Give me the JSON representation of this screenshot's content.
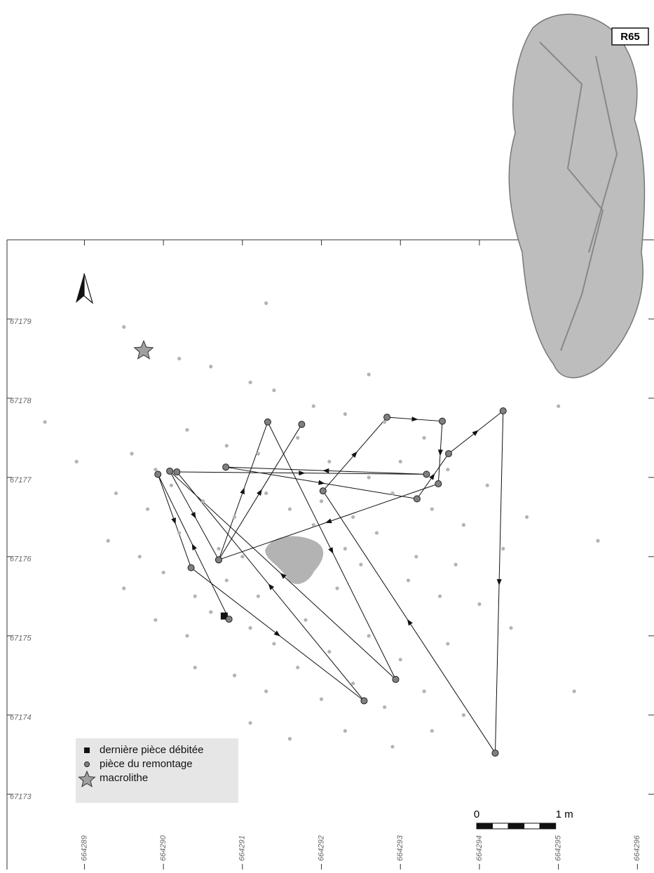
{
  "chart_data": {
    "type": "scatter",
    "annotation": "R65",
    "xlim": [
      664288.02,
      664296.21
    ],
    "ylim": [
      67172.05,
      67180.0
    ],
    "xticks": [
      664289,
      664290,
      664291,
      664292,
      664293,
      664294,
      664295,
      664296
    ],
    "yticks": [
      67173,
      67174,
      67175,
      67176,
      67177,
      67178,
      67179
    ],
    "scale_bar": {
      "length": 1,
      "labels": [
        "0",
        "1 m"
      ]
    },
    "series": [
      {
        "color": "#b3b3b3",
        "marker": "dot",
        "x": [
          664290.2,
          664290.6,
          664291.1,
          664291.4,
          664291.9,
          664292.3,
          664292.8,
          664293.3,
          664289.6,
          664289.9,
          664290.3,
          664290.8,
          664291.2,
          664291.7,
          664292.1,
          664292.6,
          664293.0,
          664293.6,
          664294.1,
          664289.4,
          664289.8,
          664290.1,
          664290.5,
          664290.9,
          664291.3,
          664291.6,
          664292.0,
          664292.4,
          664292.9,
          664293.4,
          664293.8,
          664294.6,
          664289.3,
          664289.7,
          664290.2,
          664290.7,
          664291.0,
          664291.5,
          664291.9,
          664292.3,
          664292.7,
          664293.2,
          664293.7,
          664294.3,
          664289.5,
          664290.0,
          664290.4,
          664290.8,
          664291.2,
          664291.7,
          664292.2,
          664292.5,
          664293.1,
          664293.5,
          664294.0,
          664289.9,
          664290.3,
          664290.6,
          664291.1,
          664291.4,
          664291.8,
          664292.1,
          664292.6,
          664293.0,
          664293.6,
          664294.4,
          664290.4,
          664290.9,
          664291.3,
          664291.7,
          664292.0,
          664292.4,
          664292.8,
          664293.3,
          664293.8,
          664291.1,
          664291.6,
          664292.3,
          664292.9,
          664293.4,
          664294.2,
          664288.5,
          664288.9,
          664295.5,
          664295.2,
          664292.6,
          664291.3,
          664289.5,
          664295.0,
          664290.7
        ],
        "y": [
          67178.5,
          67178.4,
          67178.2,
          67178.1,
          67177.9,
          67177.8,
          67177.7,
          67177.5,
          67177.3,
          67177.1,
          67177.6,
          67177.4,
          67177.3,
          67177.5,
          67177.2,
          67177.0,
          67177.2,
          67177.1,
          67176.9,
          67176.8,
          67176.6,
          67176.9,
          67176.7,
          67176.5,
          67176.8,
          67176.6,
          67176.7,
          67176.5,
          67176.8,
          67176.6,
          67176.4,
          67176.5,
          67176.2,
          67176.0,
          67176.3,
          67176.1,
          67176.0,
          67176.2,
          67176.4,
          67176.1,
          67176.3,
          67176.0,
          67175.9,
          67176.1,
          67175.6,
          67175.8,
          67175.5,
          67175.7,
          67175.5,
          67175.8,
          67175.6,
          67175.9,
          67175.7,
          67175.5,
          67175.4,
          67175.2,
          67175.0,
          67175.3,
          67175.1,
          67174.9,
          67175.2,
          67174.8,
          67175.0,
          67174.7,
          67174.9,
          67175.1,
          67174.6,
          67174.5,
          67174.3,
          67174.6,
          67174.2,
          67174.4,
          67174.1,
          67174.3,
          67174.0,
          67173.9,
          67173.7,
          67173.8,
          67173.6,
          67173.8,
          67173.5,
          67177.7,
          67177.2,
          67176.2,
          67174.3,
          67178.3,
          67179.2,
          67178.9,
          67177.9,
          67173.1
        ]
      },
      {
        "name": "dernière pièce débitée",
        "color": "#111111",
        "marker": "square",
        "x": [
          664290.77
        ],
        "y": [
          67175.25
        ]
      },
      {
        "name": "pièce du remontage",
        "color": "#808080",
        "marker": "circle",
        "arrows": true,
        "x": [
          664290.83,
          664289.93,
          664290.35,
          664292.54,
          664290.17,
          664293.33,
          664290.79,
          664293.21,
          664293.61,
          664294.3,
          664294.2,
          664292.02,
          664292.83,
          664293.53,
          664293.48,
          664290.7,
          664291.32,
          664292.94,
          664290.08,
          664290.7,
          664291.75
        ],
        "y": [
          67175.21,
          67177.04,
          67175.86,
          67174.18,
          67177.07,
          67177.04,
          67177.13,
          67176.73,
          67177.3,
          67177.84,
          67173.52,
          67176.83,
          67177.76,
          67177.71,
          67176.92,
          67175.96,
          67177.7,
          67174.45,
          67177.08,
          67175.96,
          67177.67
        ]
      },
      {
        "name": "macrolithe",
        "color": "#a0a0a0",
        "marker": "star",
        "x": [
          664289.75
        ],
        "y": [
          67178.6
        ]
      }
    ]
  }
}
